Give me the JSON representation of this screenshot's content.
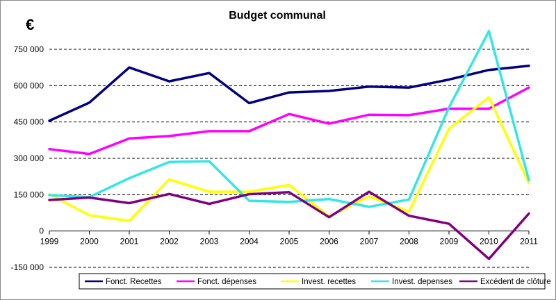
{
  "chart_data": {
    "type": "line",
    "title": "Budget communal",
    "ylabel": "€",
    "xlabel": "",
    "ylim": [
      -150000,
      750000
    ],
    "grid": "horizontal dashed",
    "legend_position": "bottom-right",
    "x": [
      "1999",
      "2000",
      "2001",
      "2002",
      "2003",
      "2004",
      "2005",
      "2006",
      "2007",
      "2008",
      "2009",
      "2010",
      "2011"
    ],
    "y_ticks": [
      750000,
      600000,
      450000,
      300000,
      150000,
      0,
      -150000
    ],
    "y_tick_labels": [
      "750 000",
      "600 000",
      "450 000",
      "300 000",
      "150 000",
      "0",
      "-150 000"
    ],
    "series": [
      {
        "name": "Fonct. Recettes",
        "color": "#000080",
        "values": [
          455000,
          530000,
          675000,
          618000,
          652000,
          528000,
          572000,
          578000,
          596000,
          592000,
          625000,
          665000,
          682000
        ]
      },
      {
        "name": "Fonct. dépenses",
        "color": "#ff00ff",
        "values": [
          338000,
          318000,
          382000,
          392000,
          412000,
          412000,
          483000,
          443000,
          480000,
          478000,
          505000,
          505000,
          592000
        ]
      },
      {
        "name": "Invest. recettes",
        "color": "#ffff00",
        "values": [
          152000,
          65000,
          42000,
          213000,
          162000,
          162000,
          190000,
          60000,
          143000,
          80000,
          422000,
          552000,
          198000
        ]
      },
      {
        "name": "Invest. depenses",
        "color": "#33e6e6",
        "values": [
          148000,
          140000,
          218000,
          285000,
          288000,
          125000,
          120000,
          132000,
          100000,
          130000,
          510000,
          825000,
          210000
        ]
      },
      {
        "name": "Excédent de clôture",
        "color": "#800080",
        "values": [
          128000,
          138000,
          115000,
          153000,
          112000,
          152000,
          160000,
          57000,
          162000,
          63000,
          30000,
          -115000,
          72000
        ]
      }
    ]
  }
}
